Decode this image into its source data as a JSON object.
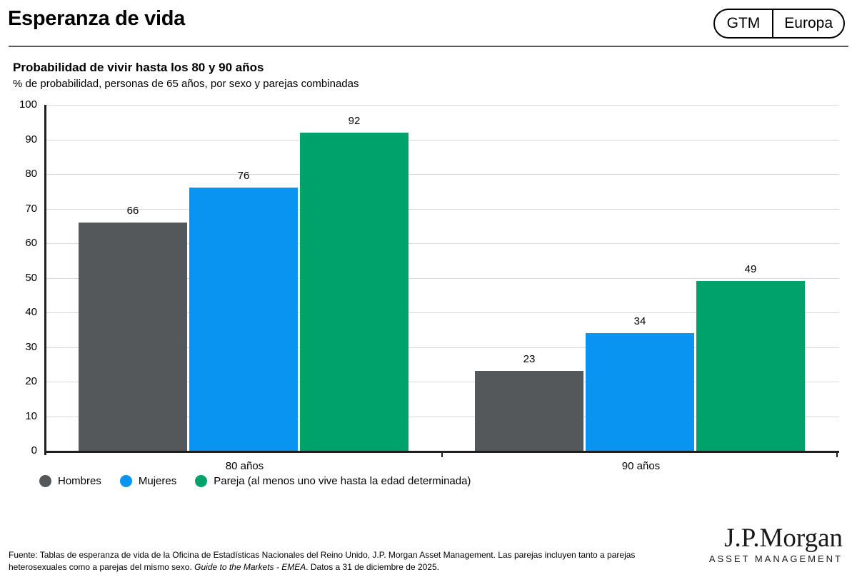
{
  "header": {
    "title": "Esperanza de vida",
    "badge": {
      "left": "GTM",
      "right": "Europa"
    }
  },
  "chart_data": {
    "type": "bar",
    "title": "Probabilidad de vivir hasta los 80 y 90 años",
    "subtitle": "% de probabilidad, personas de 65 años, por sexo y parejas combinadas",
    "categories": [
      "80 años",
      "90 años"
    ],
    "series": [
      {
        "name": "Hombres",
        "color": "#54585A",
        "values": [
          66,
          23
        ]
      },
      {
        "name": "Mujeres",
        "color": "#0A94F1",
        "values": [
          76,
          34
        ]
      },
      {
        "name": "Pareja (al menos uno vive hasta la edad determinada)",
        "color": "#00A26B",
        "values": [
          92,
          49
        ]
      }
    ],
    "ylim": [
      0,
      100
    ],
    "ytick_step": 10,
    "grid": true,
    "legend_position": "bottom",
    "xlabel": "",
    "ylabel": ""
  },
  "colors": {
    "axis": "#1f1f1f",
    "gridline": "#d9d9d9",
    "rule": "#595959"
  },
  "footer": {
    "source_regular": "Fuente: Tablas de esperanza de vida de la Oficina de Estadísticas Nacionales del Reino Unido, J.P. Morgan Asset Management. Las parejas incluyen tanto a parejas heterosexuales como a parejas del mismo sexo. ",
    "source_italic": "Guide to the Markets - EMEA",
    "source_after": ". Datos a 31 de diciembre de 2025.",
    "logo_main": "J.P.Morgan",
    "logo_sub": "ASSET MANAGEMENT"
  }
}
